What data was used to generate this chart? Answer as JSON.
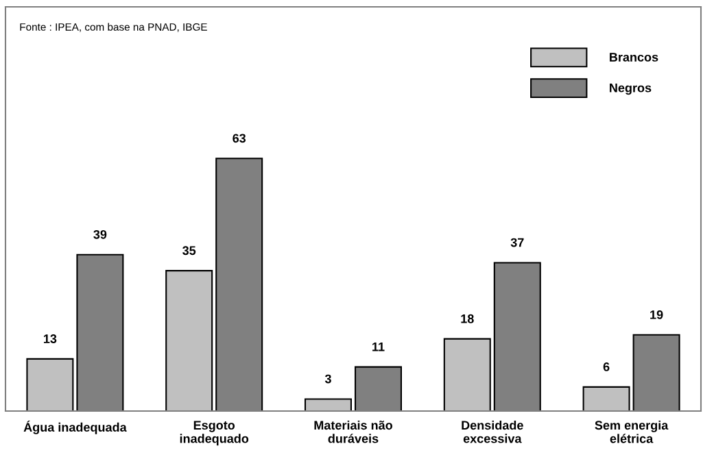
{
  "chart_data": {
    "type": "bar",
    "categories": [
      "Água inadequada",
      "Esgoto inadequado",
      "Materiais não duráveis",
      "Densidade excessiva",
      "Sem energia elétrica"
    ],
    "series": [
      {
        "name": "Brancos",
        "color": "#c0c0c0",
        "values": [
          13,
          35,
          3,
          18,
          6
        ]
      },
      {
        "name": "Negros",
        "color": "#808080",
        "values": [
          39,
          63,
          11,
          37,
          19
        ]
      }
    ],
    "data_labels": true,
    "legend": "top right",
    "grid": false,
    "annotations": [
      "Fonte : IPEA, com base na PNAD, IBGE"
    ]
  }
}
